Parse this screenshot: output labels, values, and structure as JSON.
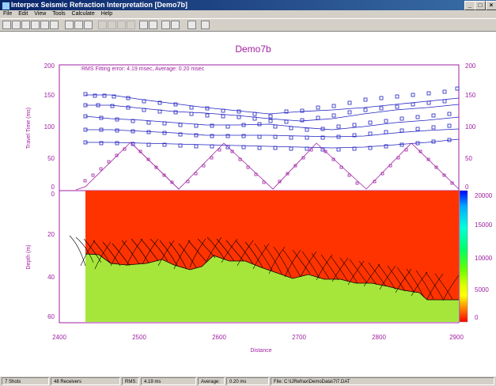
{
  "window": {
    "title": "Interpex Seismic Refraction Interpretation [Demo7b]",
    "buttons": [
      "_",
      "□",
      "×"
    ]
  },
  "menu": [
    "File",
    "Edit",
    "View",
    "Tools",
    "Calculate",
    "Help"
  ],
  "plot": {
    "title": "Demo7b",
    "rms_text": "RMS Fitting error:    4.19 msec, Average:    0.20 msec",
    "travel_axis_label": "Travel Time (ms)",
    "depth_axis_label": "Depth (m)",
    "distance_label": "Distance",
    "tt_ticks": [
      "200",
      "150",
      "100",
      "50",
      "0"
    ],
    "depth_ticks": [
      "0",
      "20",
      "40",
      "60"
    ],
    "x_ticks": [
      "2400",
      "2500",
      "2600",
      "2700",
      "2800",
      "2900"
    ],
    "colorbar_ticks": [
      "20000",
      "15000",
      "10000",
      "5000",
      "0"
    ],
    "colors": {
      "curves": "#2020c0",
      "axes": "#a020a0",
      "top_layer": "#ff3300",
      "bottom_layer": "#a6e63a"
    }
  },
  "status": {
    "shots": "7 Shots",
    "receivers": "48 Receivers",
    "rms_label": "RMS:",
    "rms_value": "4.19 ms",
    "avg_label": "Average:",
    "avg_value": "0.20 ms",
    "file": "File: C:\\IJRefrax\\DemoData\\7t7.DAT"
  }
}
